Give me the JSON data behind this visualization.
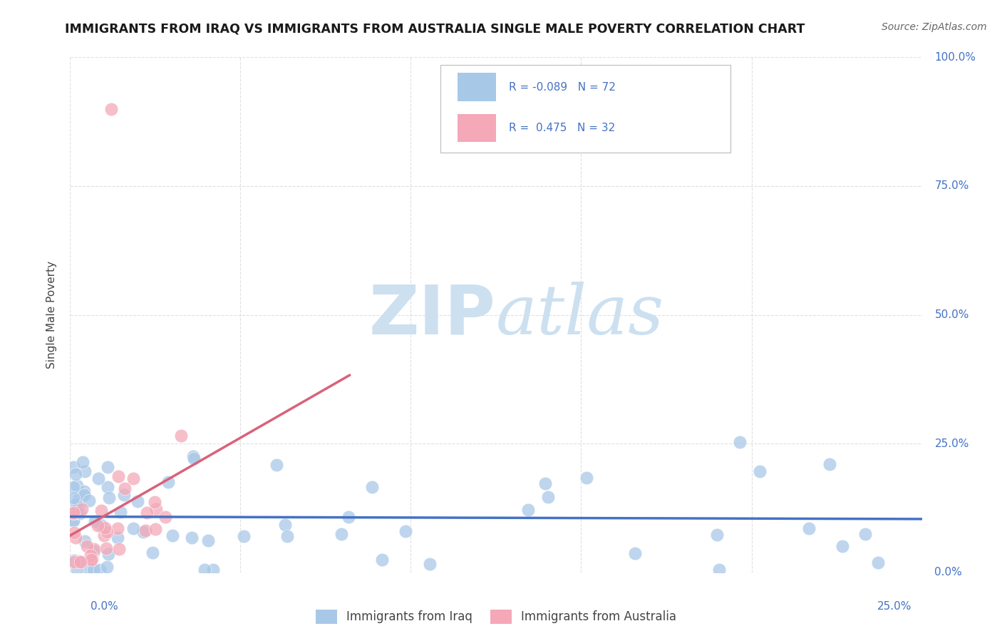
{
  "title": "IMMIGRANTS FROM IRAQ VS IMMIGRANTS FROM AUSTRALIA SINGLE MALE POVERTY CORRELATION CHART",
  "source": "Source: ZipAtlas.com",
  "ylabel": "Single Male Poverty",
  "iraq_color": "#a8c8e8",
  "australia_color": "#f4a8b8",
  "iraq_line_color": "#4472c4",
  "australia_line_color": "#d9627a",
  "background_color": "#ffffff",
  "grid_color": "#cccccc",
  "tick_color": "#4472c4",
  "title_color": "#1a1a1a",
  "source_color": "#666666",
  "watermark_color": "#cce0f0",
  "legend_text_color": "#4472c4",
  "xlim": [
    0.0,
    0.25
  ],
  "ylim": [
    0.0,
    1.0
  ],
  "iraq_r": -0.089,
  "iraq_n": 72,
  "aus_r": 0.475,
  "aus_n": 32,
  "iraq_seed": 42,
  "aus_seed": 77
}
